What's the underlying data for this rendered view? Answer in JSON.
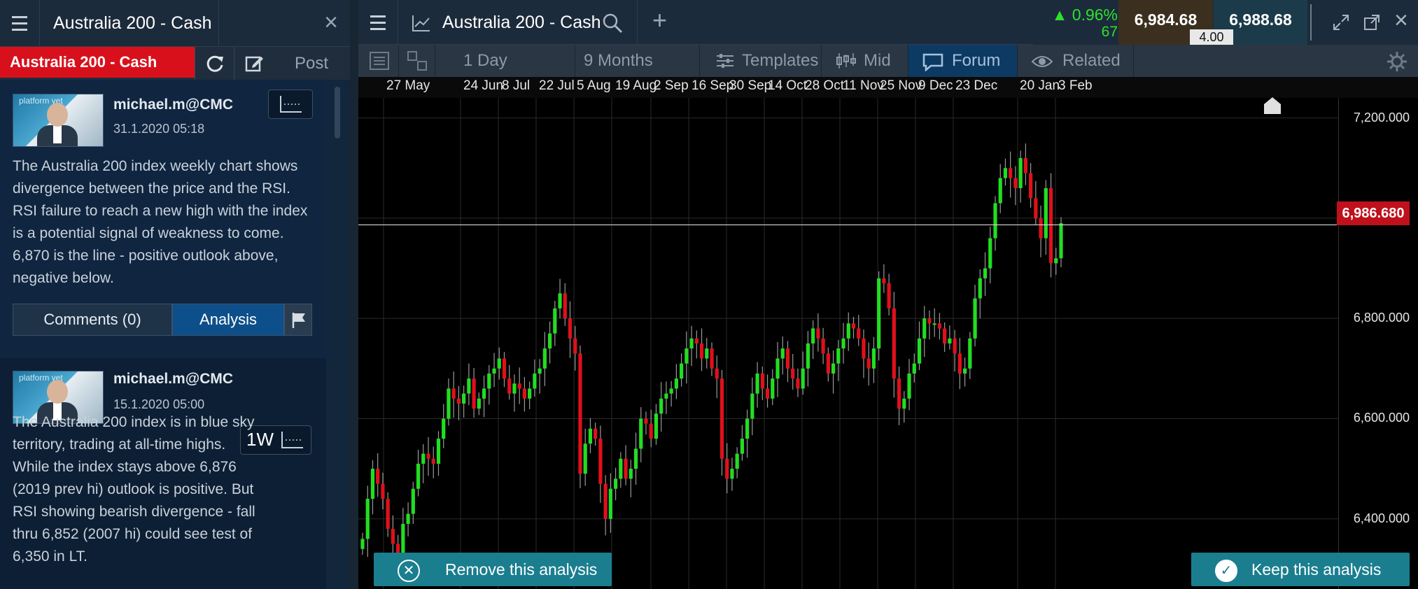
{
  "left_panel": {
    "title": "Australia 200 - Cash",
    "instrument_tag": "Australia 200 - Cash",
    "post_label": "Post",
    "close_glyph": "×",
    "posts": [
      {
        "user": "michael.m@CMC",
        "date": "31.1.2020   05:18",
        "text": "The Australia 200 index weekly chart shows divergence between the price and the RSI. RSI failure to reach a new high with the index is a potential signal of weakness to come. 6,870 is the line - positive outlook above, negative below.",
        "comments_label": "Comments (0)",
        "analysis_label": "Analysis"
      },
      {
        "user": "michael.m@CMC",
        "date": "15.1.2020   05:00",
        "timeframe": "1W",
        "text": "The Australia 200 index is in blue sky territory, trading at all-time highs. While the index stays above 6,876 (2019 prev hi) outlook is positive. But RSI showing bearish divergence - fall thru 6,852 (2007 hi) could see test of 6,350 in LT."
      }
    ],
    "avatar_text": "platform yet"
  },
  "chart_window": {
    "title": "Australia 200 - Cash",
    "change_pct": "▲ 0.96%",
    "change_pts": "67",
    "sell_price": "6,984.68",
    "buy_price": "6,988.68",
    "spread": "4.00",
    "toolbar": {
      "interval": "1 Day",
      "range": "9 Months",
      "templates": "Templates",
      "mid": "Mid",
      "forum": "Forum",
      "related": "Related"
    },
    "current_price_label": "6,986.680",
    "remove_label": "Remove this analysis",
    "keep_label": "Keep this analysis"
  },
  "chart_data": {
    "type": "candlestick",
    "x_tick_labels": [
      "27 May",
      "24 Jun",
      "8 Jul",
      "22 Jul",
      "5 Aug",
      "19 Aug",
      "2 Sep",
      "16 Sep",
      "30 Sep",
      "14 Oct",
      "28 Oct",
      "11 Nov",
      "25 Nov",
      "9 Dec",
      "23 Dec",
      "20 Jan",
      "3 Feb"
    ],
    "y_tick_labels": [
      "7,200.000",
      "6,800.000",
      "6,600.000",
      "6,400.000"
    ],
    "ylim": [
      6260,
      7240
    ],
    "current_price": 6986.68,
    "up_color": "#22dd22",
    "down_color": "#e0101b",
    "closes": [
      6360,
      6440,
      6500,
      6470,
      6440,
      6380,
      6350,
      6320,
      6390,
      6410,
      6460,
      6510,
      6530,
      6520,
      6510,
      6560,
      6600,
      6660,
      6640,
      6630,
      6650,
      6680,
      6620,
      6640,
      6660,
      6690,
      6700,
      6720,
      6680,
      6650,
      6670,
      6660,
      6640,
      6660,
      6690,
      6700,
      6740,
      6770,
      6820,
      6850,
      6800,
      6760,
      6730,
      6490,
      6550,
      6580,
      6560,
      6470,
      6400,
      6460,
      6480,
      6520,
      6480,
      6500,
      6540,
      6600,
      6590,
      6560,
      6610,
      6640,
      6650,
      6660,
      6680,
      6710,
      6740,
      6760,
      6750,
      6720,
      6740,
      6700,
      6680,
      6520,
      6480,
      6500,
      6530,
      6560,
      6600,
      6650,
      6690,
      6660,
      6640,
      6680,
      6720,
      6740,
      6700,
      6680,
      6660,
      6700,
      6750,
      6780,
      6760,
      6730,
      6690,
      6710,
      6740,
      6760,
      6790,
      6780,
      6760,
      6720,
      6700,
      6740,
      6880,
      6870,
      6820,
      6680,
      6620,
      6640,
      6690,
      6710,
      6760,
      6800,
      6790,
      6790,
      6780,
      6750,
      6760,
      6730,
      6690,
      6700,
      6760,
      6840,
      6880,
      6900,
      6960,
      7030,
      7080,
      7100,
      7080,
      7060,
      7120,
      7090,
      7040,
      7000,
      6960,
      7060,
      6910,
      6920,
      6990
    ]
  }
}
